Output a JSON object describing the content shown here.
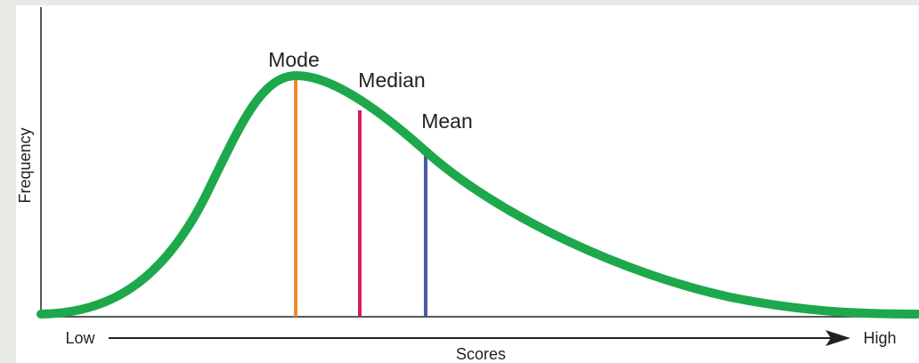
{
  "axis": {
    "y_label": "Frequency",
    "x_label": "Scores",
    "low": "Low",
    "high": "High"
  },
  "markers": [
    {
      "label": "Mode"
    },
    {
      "label": "Median"
    },
    {
      "label": "Mean"
    }
  ]
}
